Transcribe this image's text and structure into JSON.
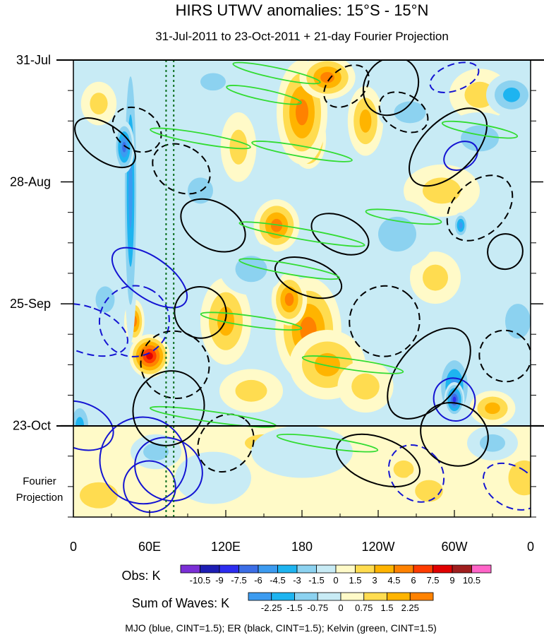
{
  "chart_data": {
    "type": "heatmap",
    "title": "HIRS UTWV anomalies: 15°S - 15°N",
    "subtitle": "31-Jul-2011 to 23-Oct-2011 + 21-day Fourier Projection",
    "x_ticks": [
      "0",
      "60E",
      "120E",
      "180",
      "120W",
      "60W",
      "0"
    ],
    "x_range_deg": [
      0,
      360
    ],
    "y_ticks": [
      "31-Jul",
      "28-Aug",
      "25-Sep",
      "23-Oct"
    ],
    "y_range_days": [
      0,
      105
    ],
    "y_tick_days": [
      0,
      28,
      56,
      84
    ],
    "projection_label": [
      "Fourier",
      "Projection"
    ],
    "obs_boundary_day": 84,
    "vertical_lines_lon": [
      73,
      79
    ],
    "obs_colorbar": {
      "label": "Obs: K",
      "tick_labels": [
        "-10.5",
        "-9",
        "-7.5",
        "-6",
        "-4.5",
        "-3",
        "-1.5",
        "0",
        "1.5",
        "3",
        "4.5",
        "6",
        "7.5",
        "9",
        "10.5"
      ],
      "colors": [
        "#7b2fd6",
        "#1e1eb4",
        "#2d2df0",
        "#3c6ee6",
        "#3c9bf0",
        "#1eb4f0",
        "#8cd2f0",
        "#c8ebf5",
        "#fffac8",
        "#ffdc50",
        "#ffb400",
        "#ff8200",
        "#ff3c00",
        "#e10000",
        "#a01e1e",
        "#ff64c8"
      ]
    },
    "waves_colorbar": {
      "label": "Sum of Waves: K",
      "tick_labels": [
        "-2.25",
        "-1.5",
        "-0.75",
        "0",
        "0.75",
        "1.5",
        "2.25"
      ],
      "colors": [
        "#3c9bf0",
        "#1eb4f0",
        "#8cd2f0",
        "#c8ebf5",
        "#fffac8",
        "#ffdc50",
        "#ffb400",
        "#ff8200"
      ]
    },
    "footer": "MJO (blue, CINT=1.5); ER (black, CINT=1.5); Kelvin (green, CINT=1.5)",
    "contour_colors": {
      "mjo": "#1414d2",
      "er": "#000000",
      "kelvin": "#32dc32"
    },
    "anomaly_blobs": [
      {
        "lon": 185,
        "day": 18,
        "rlon": 14,
        "rday": 7,
        "val": 9
      },
      {
        "lon": 180,
        "day": 12,
        "rlon": 20,
        "rday": 12,
        "val": 6
      },
      {
        "lon": 200,
        "day": 4,
        "rlon": 22,
        "rday": 5,
        "val": 5
      },
      {
        "lon": 160,
        "day": 38,
        "rlon": 18,
        "rday": 6,
        "val": 5
      },
      {
        "lon": 185,
        "day": 62,
        "rlon": 26,
        "rday": 12,
        "val": 6
      },
      {
        "lon": 170,
        "day": 55,
        "rlon": 14,
        "rday": 6,
        "val": 5
      },
      {
        "lon": 200,
        "day": 70,
        "rlon": 30,
        "rday": 8,
        "val": 4
      },
      {
        "lon": 60,
        "day": 68,
        "rlon": 16,
        "rday": 5,
        "val": 9
      },
      {
        "lon": 48,
        "day": 60,
        "rlon": 8,
        "rday": 5,
        "val": 6
      },
      {
        "lon": 120,
        "day": 60,
        "rlon": 20,
        "rday": 10,
        "val": 4
      },
      {
        "lon": 230,
        "day": 14,
        "rlon": 14,
        "rday": 8,
        "val": 4
      },
      {
        "lon": 290,
        "day": 30,
        "rlon": 30,
        "rday": 6,
        "val": 3
      },
      {
        "lon": 320,
        "day": 8,
        "rlon": 24,
        "rday": 6,
        "val": 3
      },
      {
        "lon": 330,
        "day": 80,
        "rlon": 18,
        "rday": 4,
        "val": 4
      },
      {
        "lon": 285,
        "day": 50,
        "rlon": 20,
        "rday": 6,
        "val": 3
      },
      {
        "lon": 230,
        "day": 75,
        "rlon": 22,
        "rday": 6,
        "val": 3
      },
      {
        "lon": 130,
        "day": 20,
        "rlon": 14,
        "rday": 8,
        "val": 3
      },
      {
        "lon": 20,
        "day": 10,
        "rlon": 14,
        "rday": 5,
        "val": 3
      },
      {
        "lon": 140,
        "day": 76,
        "rlon": 25,
        "rday": 5,
        "val": 3
      },
      {
        "lon": 45,
        "day": 30,
        "rlon": 6,
        "rday": 35,
        "val": -5
      },
      {
        "lon": 40,
        "day": 20,
        "rlon": 8,
        "rday": 6,
        "val": -7
      },
      {
        "lon": 300,
        "day": 75,
        "rlon": 14,
        "rday": 8,
        "val": -6
      },
      {
        "lon": 300,
        "day": 78,
        "rlon": 8,
        "rday": 4,
        "val": -9
      },
      {
        "lon": 255,
        "day": 40,
        "rlon": 30,
        "rday": 8,
        "val": -3
      },
      {
        "lon": 305,
        "day": 38,
        "rlon": 6,
        "rday": 3,
        "val": -6
      },
      {
        "lon": 345,
        "day": 8,
        "rlon": 20,
        "rday": 5,
        "val": -4
      },
      {
        "lon": 320,
        "day": 18,
        "rlon": 30,
        "rday": 6,
        "val": -3
      },
      {
        "lon": 265,
        "day": 12,
        "rlon": 25,
        "rday": 5,
        "val": -3
      },
      {
        "lon": 140,
        "day": 48,
        "rlon": 25,
        "rday": 6,
        "val": -3
      },
      {
        "lon": 100,
        "day": 30,
        "rlon": 20,
        "rday": 6,
        "val": -2
      },
      {
        "lon": 5,
        "day": 84,
        "rlon": 10,
        "rday": 6,
        "val": -4
      },
      {
        "lon": 25,
        "day": 55,
        "rlon": 15,
        "rday": 6,
        "val": -2
      },
      {
        "lon": 350,
        "day": 60,
        "rlon": 20,
        "rday": 8,
        "val": -3
      },
      {
        "lon": 110,
        "day": 5,
        "rlon": 20,
        "rday": 4,
        "val": -2
      }
    ],
    "projection_blobs": [
      {
        "lon": 260,
        "day": 94,
        "rlon": 16,
        "rday": 4,
        "val": 1.5
      },
      {
        "lon": 280,
        "day": 99,
        "rlon": 22,
        "rday": 5,
        "val": 1.2
      },
      {
        "lon": 355,
        "day": 96,
        "rlon": 25,
        "rday": 8,
        "val": 1.0
      },
      {
        "lon": 20,
        "day": 100,
        "rlon": 30,
        "rday": 6,
        "val": 0.8
      },
      {
        "lon": 150,
        "day": 88,
        "rlon": 30,
        "rday": 4,
        "val": 0.8
      },
      {
        "lon": 65,
        "day": 90,
        "rlon": 20,
        "rday": 4,
        "val": -1.2
      },
      {
        "lon": 180,
        "day": 90,
        "rlon": 40,
        "rday": 6,
        "val": -0.6
      },
      {
        "lon": 330,
        "day": 88,
        "rlon": 20,
        "rday": 4,
        "val": -0.8
      },
      {
        "lon": 110,
        "day": 96,
        "rlon": 30,
        "rday": 6,
        "val": -0.5
      }
    ],
    "mjo_contours": [
      {
        "lon": 60,
        "day": 50,
        "rlon": 16,
        "rday": 10,
        "rot": -55,
        "dash": false
      },
      {
        "lon": 48,
        "day": 60,
        "rlon": 28,
        "rday": 8,
        "rot": -65,
        "dash": true
      },
      {
        "lon": 55,
        "day": 92,
        "rlon": 34,
        "rday": 10,
        "rot": -55,
        "dash": false
      },
      {
        "lon": 75,
        "day": 94,
        "rlon": 24,
        "rday": 8,
        "rot": -60,
        "dash": false
      },
      {
        "lon": 60,
        "day": 98,
        "rlon": 20,
        "rday": 6,
        "rot": -60,
        "dash": false
      },
      {
        "lon": 5,
        "day": 84,
        "rlon": 18,
        "rday": 8,
        "rot": -70,
        "dash": false
      },
      {
        "lon": 10,
        "day": 62,
        "rlon": 18,
        "rday": 10,
        "rot": -70,
        "dash": true
      },
      {
        "lon": 270,
        "day": 95,
        "rlon": 20,
        "rday": 7,
        "rot": -40,
        "dash": true
      },
      {
        "lon": 300,
        "day": 78,
        "rlon": 16,
        "rday": 5,
        "rot": -30,
        "dash": false
      },
      {
        "lon": 345,
        "day": 98,
        "rlon": 16,
        "rday": 7,
        "rot": -60,
        "dash": true
      },
      {
        "lon": 300,
        "day": 4,
        "rlon": 20,
        "rday": 3,
        "rot": -20,
        "dash": true
      },
      {
        "lon": 305,
        "day": 22,
        "rlon": 14,
        "rday": 3,
        "rot": -30,
        "dash": false
      }
    ],
    "er_contours": [
      {
        "lon": 25,
        "day": 19,
        "rlon": 14,
        "rday": 8,
        "rot": -55,
        "dash": false
      },
      {
        "lon": 50,
        "day": 16,
        "rlon": 16,
        "rday": 6,
        "rot": -55,
        "dash": true
      },
      {
        "lon": 85,
        "day": 25,
        "rlon": 18,
        "rday": 7,
        "rot": -60,
        "dash": true
      },
      {
        "lon": 110,
        "day": 38,
        "rlon": 18,
        "rday": 8,
        "rot": -60,
        "dash": false
      },
      {
        "lon": 100,
        "day": 58,
        "rlon": 20,
        "rday": 6,
        "rot": -55,
        "dash": false
      },
      {
        "lon": 80,
        "day": 70,
        "rlon": 26,
        "rday": 8,
        "rot": -55,
        "dash": true
      },
      {
        "lon": 75,
        "day": 80,
        "rlon": 30,
        "rday": 8,
        "rot": -60,
        "dash": false
      },
      {
        "lon": 120,
        "day": 88,
        "rlon": 24,
        "rday": 6,
        "rot": -50,
        "dash": true
      },
      {
        "lon": 185,
        "day": 50,
        "rlon": 14,
        "rday": 8,
        "rot": -70,
        "dash": false
      },
      {
        "lon": 210,
        "day": 40,
        "rlon": 14,
        "rday": 7,
        "rot": -65,
        "dash": false
      },
      {
        "lon": 245,
        "day": 60,
        "rlon": 28,
        "rday": 8,
        "rot": -50,
        "dash": true
      },
      {
        "lon": 280,
        "day": 72,
        "rlon": 42,
        "rday": 7,
        "rot": -50,
        "dash": false
      },
      {
        "lon": 295,
        "day": 20,
        "rlon": 38,
        "rday": 6,
        "rot": -45,
        "dash": false
      },
      {
        "lon": 320,
        "day": 34,
        "rlon": 30,
        "rday": 6,
        "rot": -45,
        "dash": true
      },
      {
        "lon": 340,
        "day": 44,
        "rlon": 14,
        "rday": 4,
        "rot": -50,
        "dash": false
      },
      {
        "lon": 250,
        "day": 6,
        "rlon": 24,
        "rday": 6,
        "rot": -55,
        "dash": false
      },
      {
        "lon": 215,
        "day": 6,
        "rlon": 20,
        "rday": 4,
        "rot": -40,
        "dash": true
      },
      {
        "lon": 260,
        "day": 12,
        "rlon": 14,
        "rday": 6,
        "rot": -60,
        "dash": true
      },
      {
        "lon": 240,
        "day": 92,
        "rlon": 18,
        "rday": 10,
        "rot": -70,
        "dash": false
      },
      {
        "lon": 300,
        "day": 86,
        "rlon": 24,
        "rday": 8,
        "rot": -60,
        "dash": false
      },
      {
        "lon": 340,
        "day": 68,
        "rlon": 20,
        "rday": 6,
        "rot": -55,
        "dash": true
      }
    ],
    "kelvin_contours": [
      {
        "lon": 160,
        "day": 3,
        "rlon": 35,
        "rday": 1.2,
        "rot": 12,
        "dash": false
      },
      {
        "lon": 150,
        "day": 8,
        "rlon": 30,
        "rday": 1.2,
        "rot": 12,
        "dash": false
      },
      {
        "lon": 180,
        "day": 21,
        "rlon": 40,
        "rday": 1.2,
        "rot": 10,
        "dash": false
      },
      {
        "lon": 180,
        "day": 40,
        "rlon": 50,
        "rday": 1.2,
        "rot": 10,
        "dash": false
      },
      {
        "lon": 170,
        "day": 48,
        "rlon": 40,
        "rday": 1.2,
        "rot": 10,
        "dash": false
      },
      {
        "lon": 140,
        "day": 60,
        "rlon": 40,
        "rday": 1.2,
        "rot": 8,
        "dash": false
      },
      {
        "lon": 110,
        "day": 82,
        "rlon": 50,
        "rday": 1.2,
        "rot": 8,
        "dash": false
      },
      {
        "lon": 200,
        "day": 88,
        "rlon": 40,
        "rday": 1.2,
        "rot": 8,
        "dash": false
      },
      {
        "lon": 320,
        "day": 16,
        "rlon": 30,
        "rday": 1.2,
        "rot": 10,
        "dash": false
      },
      {
        "lon": 260,
        "day": 36,
        "rlon": 30,
        "rday": 1.2,
        "rot": 8,
        "dash": false
      },
      {
        "lon": 100,
        "day": 18,
        "rlon": 40,
        "rday": 1.2,
        "rot": 10,
        "dash": false
      },
      {
        "lon": 220,
        "day": 70,
        "rlon": 40,
        "rday": 1.2,
        "rot": 8,
        "dash": false
      }
    ]
  }
}
